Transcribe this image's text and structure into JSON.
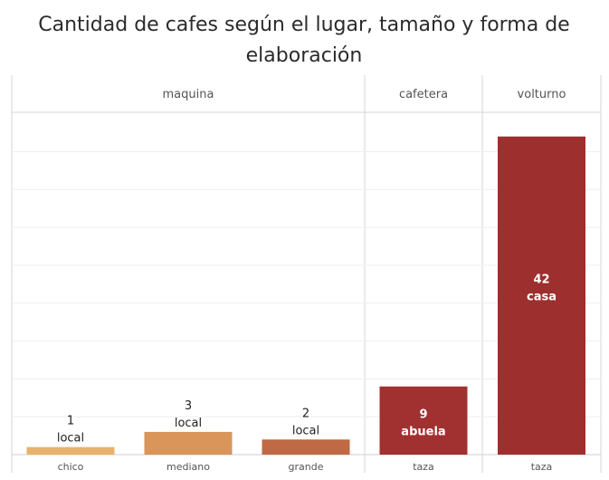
{
  "chart_data": {
    "type": "bar",
    "title_lines": [
      "Cantidad de cafes según el lugar, tamaño y forma de",
      "elaboración"
    ],
    "groups": [
      {
        "name": "maquina",
        "categories": [
          "chico",
          "mediano",
          "grande"
        ]
      },
      {
        "name": "cafetera",
        "categories": [
          "taza"
        ]
      },
      {
        "name": "volturno",
        "categories": [
          "taza"
        ]
      }
    ],
    "bars": [
      {
        "group": "maquina",
        "category": "chico",
        "value": 1,
        "place": "local",
        "color": "#E8B26E"
      },
      {
        "group": "maquina",
        "category": "mediano",
        "value": 3,
        "place": "local",
        "color": "#D9955A"
      },
      {
        "group": "maquina",
        "category": "grande",
        "value": 2,
        "place": "local",
        "color": "#C06A45"
      },
      {
        "group": "cafetera",
        "category": "taza",
        "value": 9,
        "place": "abuela",
        "color": "#A13131"
      },
      {
        "group": "volturno",
        "category": "taza",
        "value": 42,
        "place": "casa",
        "color": "#9E2F2F"
      }
    ],
    "ylim": [
      0,
      44
    ],
    "grid": true,
    "xlabel": "",
    "ylabel": ""
  }
}
